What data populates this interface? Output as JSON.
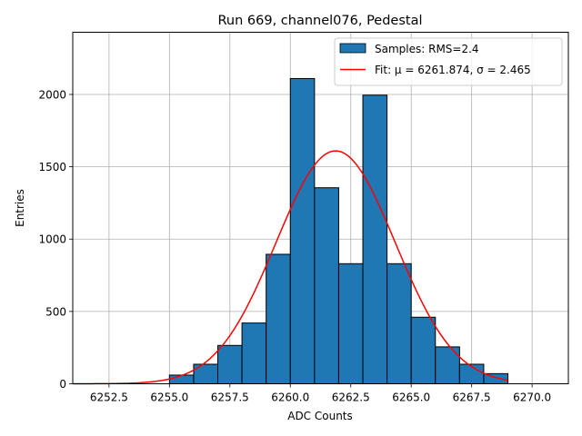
{
  "chart_data": {
    "type": "bar",
    "title": "Run 669, channel076, Pedestal",
    "xlabel": "ADC Counts",
    "ylabel": "Entries",
    "xlim": [
      6251.0,
      6271.5
    ],
    "ylim": [
      0,
      2430
    ],
    "x_ticks": [
      6252.5,
      6255.0,
      6257.5,
      6260.0,
      6262.5,
      6265.0,
      6267.5,
      6270.0
    ],
    "x_tick_labels": [
      "6252.5",
      "6255.0",
      "6257.5",
      "6260.0",
      "6262.5",
      "6265.0",
      "6267.5",
      "6270.0"
    ],
    "y_ticks": [
      0,
      500,
      1000,
      1500,
      2000
    ],
    "y_tick_labels": [
      "0",
      "500",
      "1000",
      "1500",
      "2000"
    ],
    "grid": true,
    "bins": [
      {
        "left": 6255,
        "right": 6256,
        "value": 60
      },
      {
        "left": 6256,
        "right": 6257,
        "value": 135
      },
      {
        "left": 6257,
        "right": 6258,
        "value": 265
      },
      {
        "left": 6258,
        "right": 6259,
        "value": 420
      },
      {
        "left": 6259,
        "right": 6260,
        "value": 895
      },
      {
        "left": 6260,
        "right": 6261,
        "value": 2110
      },
      {
        "left": 6261,
        "right": 6262,
        "value": 1355
      },
      {
        "left": 6262,
        "right": 6263,
        "value": 830
      },
      {
        "left": 6263,
        "right": 6264,
        "value": 1995
      },
      {
        "left": 6264,
        "right": 6265,
        "value": 830
      },
      {
        "left": 6265,
        "right": 6266,
        "value": 460
      },
      {
        "left": 6266,
        "right": 6267,
        "value": 255
      },
      {
        "left": 6267,
        "right": 6268,
        "value": 135
      },
      {
        "left": 6268,
        "right": 6269,
        "value": 70
      }
    ],
    "fit": {
      "mu": 6261.874,
      "sigma": 2.465,
      "amplitude": 1610,
      "x_range": [
        6251.0,
        6269.0
      ]
    },
    "series": [
      {
        "name": "Samples: RMS=2.4",
        "kind": "histogram",
        "color": "#1f77b4"
      },
      {
        "name": "Fit: μ = 6261.874, σ = 2.465",
        "kind": "line",
        "color": "#ff0000"
      }
    ],
    "legend_placement": "top-right"
  }
}
